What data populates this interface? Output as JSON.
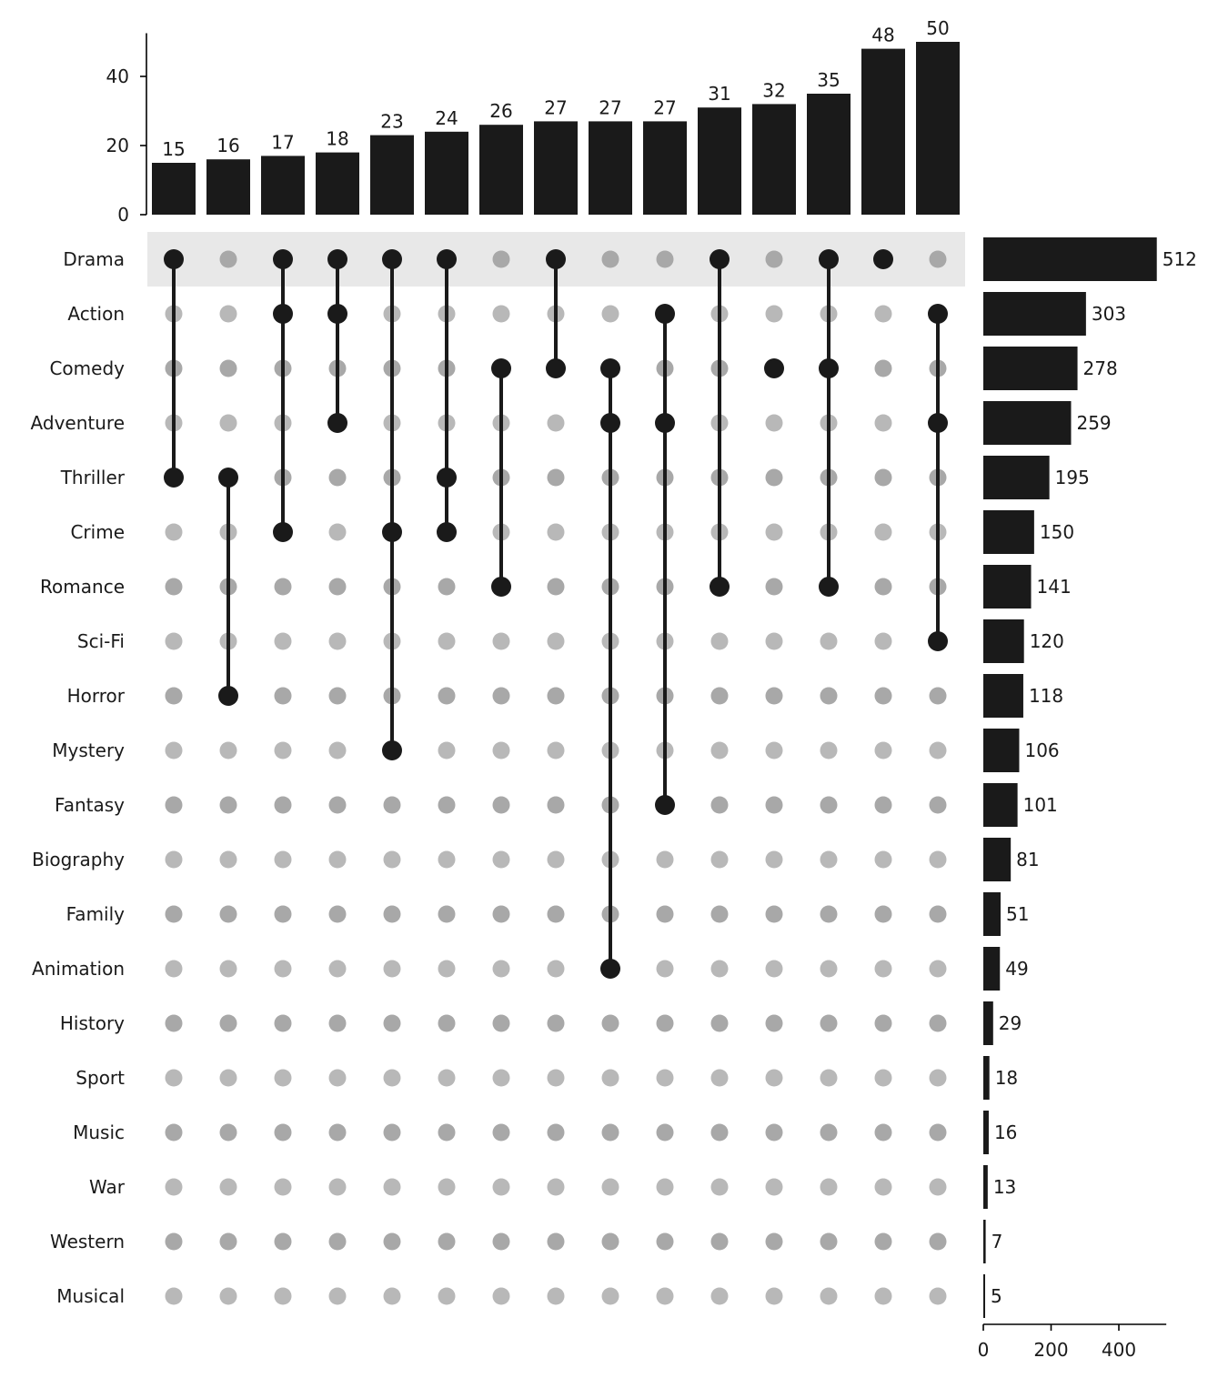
{
  "chart_data": {
    "type": "upset",
    "colors": {
      "bar": "#1a1a1a",
      "dot_active": "#1a1a1a",
      "dot_inactive_light_row": "#b8b8b8",
      "dot_inactive_shaded_row": "#a8a8a8",
      "row_shade": "#e8e8e8",
      "axis": "#000000"
    },
    "sets": [
      {
        "name": "Drama",
        "size": 512
      },
      {
        "name": "Action",
        "size": 303
      },
      {
        "name": "Comedy",
        "size": 278
      },
      {
        "name": "Adventure",
        "size": 259
      },
      {
        "name": "Thriller",
        "size": 195
      },
      {
        "name": "Crime",
        "size": 150
      },
      {
        "name": "Romance",
        "size": 141
      },
      {
        "name": "Sci-Fi",
        "size": 120
      },
      {
        "name": "Horror",
        "size": 118
      },
      {
        "name": "Mystery",
        "size": 106
      },
      {
        "name": "Fantasy",
        "size": 101
      },
      {
        "name": "Biography",
        "size": 81
      },
      {
        "name": "Family",
        "size": 51
      },
      {
        "name": "Animation",
        "size": 49
      },
      {
        "name": "History",
        "size": 29
      },
      {
        "name": "Sport",
        "size": 18
      },
      {
        "name": "Music",
        "size": 16
      },
      {
        "name": "War",
        "size": 13
      },
      {
        "name": "Western",
        "size": 7
      },
      {
        "name": "Musical",
        "size": 5
      }
    ],
    "intersections": [
      {
        "members": [
          "Drama",
          "Thriller"
        ],
        "size": 15
      },
      {
        "members": [
          "Thriller",
          "Horror"
        ],
        "size": 16
      },
      {
        "members": [
          "Drama",
          "Action",
          "Crime"
        ],
        "size": 17
      },
      {
        "members": [
          "Drama",
          "Action",
          "Adventure"
        ],
        "size": 18
      },
      {
        "members": [
          "Drama",
          "Crime",
          "Mystery"
        ],
        "size": 23
      },
      {
        "members": [
          "Drama",
          "Thriller",
          "Crime"
        ],
        "size": 24
      },
      {
        "members": [
          "Comedy",
          "Romance"
        ],
        "size": 26
      },
      {
        "members": [
          "Drama",
          "Comedy"
        ],
        "size": 27
      },
      {
        "members": [
          "Comedy",
          "Adventure",
          "Animation"
        ],
        "size": 27
      },
      {
        "members": [
          "Action",
          "Adventure",
          "Fantasy"
        ],
        "size": 27
      },
      {
        "members": [
          "Drama",
          "Romance"
        ],
        "size": 31
      },
      {
        "members": [
          "Comedy"
        ],
        "size": 32
      },
      {
        "members": [
          "Drama",
          "Comedy",
          "Romance"
        ],
        "size": 35
      },
      {
        "members": [
          "Drama"
        ],
        "size": 48
      },
      {
        "members": [
          "Action",
          "Adventure",
          "Sci-Fi"
        ],
        "size": 50
      }
    ],
    "intersection_axis": {
      "ticks": [
        0,
        20,
        40
      ],
      "ylim": [
        0,
        52.5
      ]
    },
    "set_size_axis": {
      "ticks": [
        0,
        200,
        400
      ],
      "xlim": [
        0,
        540
      ]
    }
  }
}
